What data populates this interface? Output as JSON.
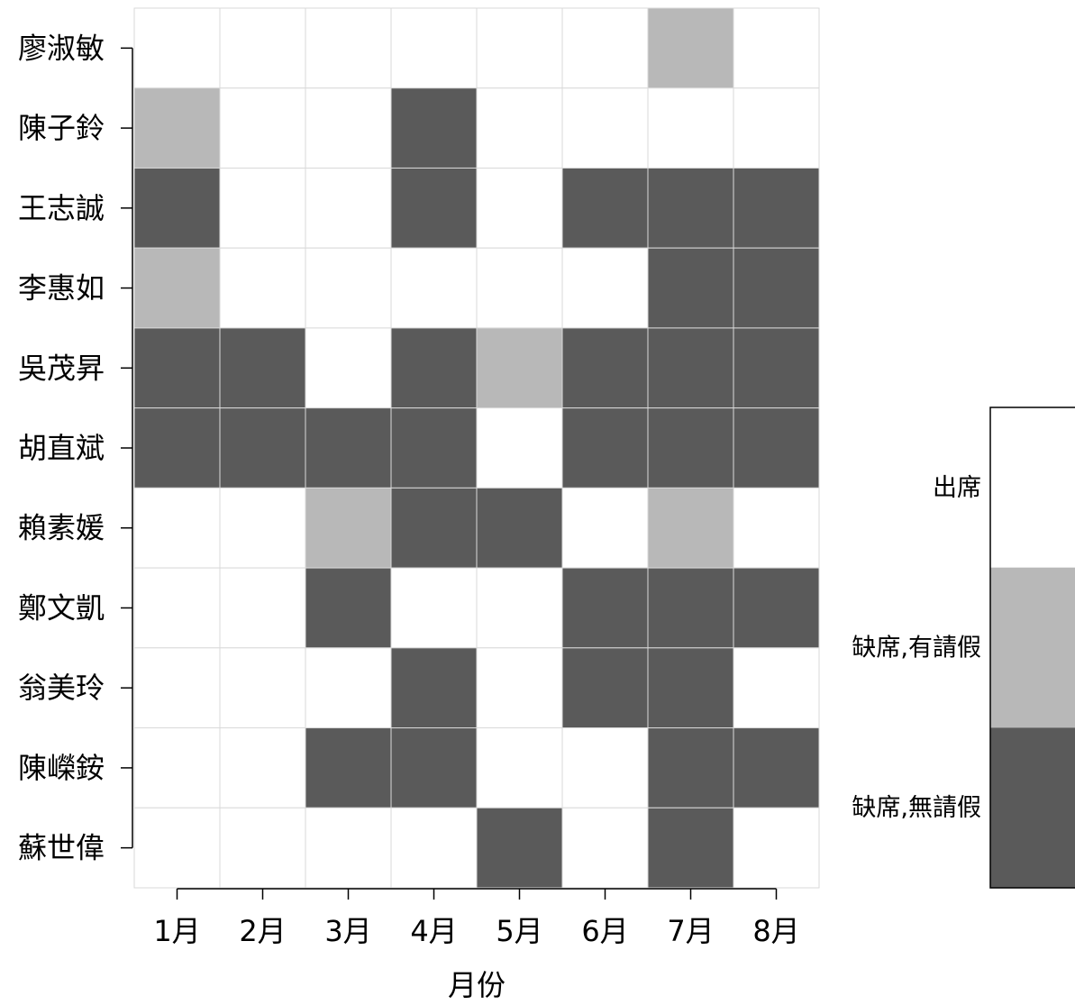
{
  "chart_data": {
    "type": "heatmap",
    "x_categories": [
      "1月",
      "2月",
      "3月",
      "4月",
      "5月",
      "6月",
      "7月",
      "8月"
    ],
    "y_categories": [
      "廖淑敏",
      "陳子鈴",
      "王志誠",
      "李惠如",
      "吳茂昇",
      "胡直斌",
      "賴素媛",
      "鄭文凱",
      "翁美玲",
      "陳嶸銨",
      "蘇世偉"
    ],
    "xlabel": "月份",
    "ylabel": "",
    "grid": true,
    "legend_position": "right",
    "levels": [
      {
        "code": 0,
        "label": "出席",
        "color": "#ffffff"
      },
      {
        "code": 1,
        "label": "缺席,有請假",
        "color": "#b8b8b8"
      },
      {
        "code": 2,
        "label": "缺席,無請假",
        "color": "#5a5a5a"
      }
    ],
    "values": [
      [
        0,
        0,
        0,
        0,
        0,
        0,
        1,
        0
      ],
      [
        1,
        0,
        0,
        2,
        0,
        0,
        0,
        0
      ],
      [
        2,
        0,
        0,
        2,
        0,
        2,
        2,
        2
      ],
      [
        1,
        0,
        0,
        0,
        0,
        0,
        2,
        2
      ],
      [
        2,
        2,
        0,
        2,
        1,
        2,
        2,
        2
      ],
      [
        2,
        2,
        2,
        2,
        0,
        2,
        2,
        2
      ],
      [
        0,
        0,
        1,
        2,
        2,
        0,
        1,
        0
      ],
      [
        0,
        0,
        2,
        0,
        0,
        2,
        2,
        2
      ],
      [
        0,
        0,
        0,
        2,
        0,
        2,
        2,
        0
      ],
      [
        0,
        0,
        2,
        2,
        0,
        0,
        2,
        2
      ],
      [
        0,
        0,
        0,
        0,
        2,
        0,
        2,
        0
      ]
    ]
  }
}
